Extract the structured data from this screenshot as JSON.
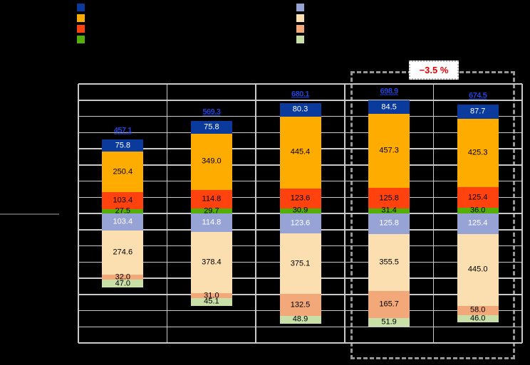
{
  "legend": {
    "dark_swatches": [
      {
        "name": "dark-blue",
        "color": "#0A3A9C"
      },
      {
        "name": "orange",
        "color": "#FFAC00"
      },
      {
        "name": "red-orange",
        "color": "#FF420E"
      },
      {
        "name": "green",
        "color": "#55AE07"
      }
    ],
    "light_swatches": [
      {
        "name": "lavender",
        "color": "#98A3D5"
      },
      {
        "name": "peach",
        "color": "#FBDFB0"
      },
      {
        "name": "salmon",
        "color": "#F2A878"
      },
      {
        "name": "light-green",
        "color": "#C9DFA8"
      }
    ]
  },
  "annotation": {
    "delta_label": "−3.5 %",
    "text_color": "#E80000",
    "highlighted_bars": [
      4,
      5
    ]
  },
  "chart_data": {
    "type": "bar",
    "subtype": "diverging-stacked",
    "bar_count": 5,
    "grid": true,
    "y_grid_step": 100,
    "y_range_above": 800,
    "y_range_below": 800,
    "series_above": [
      {
        "name": "dark-blue",
        "color": "#0A3A9C",
        "label_color": "#FFFFFF",
        "values": [
          75.8,
          75.8,
          80.3,
          84.5,
          87.7
        ]
      },
      {
        "name": "orange",
        "color": "#FFAC00",
        "label_color": "#000000",
        "values": [
          250.4,
          349.0,
          445.4,
          457.3,
          425.3
        ]
      },
      {
        "name": "red-orange",
        "color": "#FF420E",
        "label_color": "#000000",
        "values": [
          103.4,
          114.8,
          123.6,
          125.8,
          125.4
        ]
      },
      {
        "name": "green",
        "color": "#55AE07",
        "label_color": "#000000",
        "values": [
          27.5,
          29.7,
          30.9,
          31.4,
          36.0
        ]
      }
    ],
    "series_below": [
      {
        "name": "lavender",
        "color": "#98A3D5",
        "label_color": "#FFFFFF",
        "values": [
          103.4,
          114.8,
          123.6,
          125.8,
          125.4
        ]
      },
      {
        "name": "peach",
        "color": "#FBDFB0",
        "label_color": "#000000",
        "values": [
          274.6,
          378.4,
          375.1,
          355.5,
          445.0
        ]
      },
      {
        "name": "salmon",
        "color": "#F2A878",
        "label_color": "#000000",
        "values": [
          32.0,
          31.0,
          132.5,
          165.7,
          58.0
        ]
      },
      {
        "name": "light-green",
        "color": "#C9DFA8",
        "label_color": "#000000",
        "values": [
          47.0,
          45.1,
          48.9,
          51.9,
          46.0
        ]
      }
    ],
    "totals_above": [
      "457.1",
      "569.3",
      "680.1",
      "698.9",
      "674.5"
    ],
    "totals_color": "#2244D4"
  }
}
